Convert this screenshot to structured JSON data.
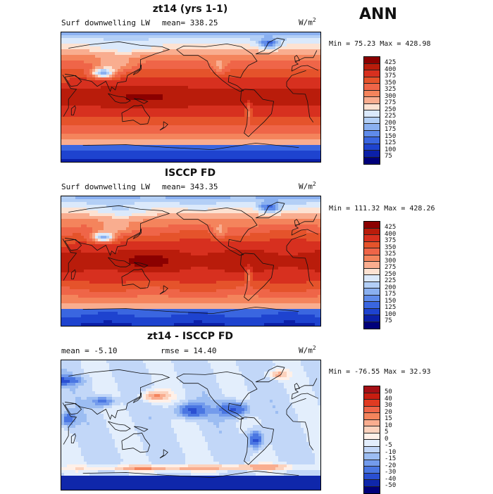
{
  "page": {
    "season": "ANN"
  },
  "panels": [
    {
      "title": "zt14 (yrs 1-1)",
      "variable": "Surf downwelling LW",
      "stat_left": "",
      "mean": "mean= 338.25",
      "units": "W/m",
      "units_exp": "2",
      "minmax": "Min =  75.23 Max = 428.98",
      "field": "model"
    },
    {
      "title": "ISCCP FD",
      "variable": "Surf downwelling LW",
      "stat_left": "",
      "mean": "mean= 343.35",
      "units": "W/m",
      "units_exp": "2",
      "minmax": "Min = 111.32 Max = 428.26",
      "field": "obs"
    },
    {
      "title": "zt14 - ISCCP FD",
      "variable": "",
      "stat_left": "mean =   -5.10",
      "mean": "rmse =   14.40",
      "units": "W/m",
      "units_exp": "2",
      "minmax": "Min = -76.55 Max =   32.93",
      "field": "diff"
    }
  ],
  "colorbars": {
    "abs": {
      "labels": [
        "425",
        "400",
        "375",
        "350",
        "325",
        "300",
        "275",
        "250",
        "225",
        "200",
        "175",
        "150",
        "125",
        "100",
        "75"
      ],
      "colors": [
        "#8b0000",
        "#b91c0b",
        "#d7301f",
        "#e5532b",
        "#ef6548",
        "#f4845c",
        "#f9ad8f",
        "#fde2d2",
        "#dbe9fb",
        "#b3cff6",
        "#8ab0f0",
        "#5f8bea",
        "#3a66e0",
        "#1e43cf",
        "#0b20a8",
        "#00007a"
      ]
    },
    "diff": {
      "labels": [
        "50",
        "40",
        "30",
        "20",
        "15",
        "10",
        "5",
        "0",
        "-5",
        "-10",
        "-15",
        "-20",
        "-30",
        "-40",
        "-50"
      ],
      "colors": [
        "#a50f15",
        "#c81d10",
        "#e03b22",
        "#ef6548",
        "#f4845c",
        "#f9ad8f",
        "#fcd2bd",
        "#fff0e8",
        "#e3eefc",
        "#c2d7f8",
        "#9cbdf2",
        "#739bec",
        "#4a76e2",
        "#2a4fd2",
        "#0f27ab",
        "#00007a"
      ]
    }
  }
}
